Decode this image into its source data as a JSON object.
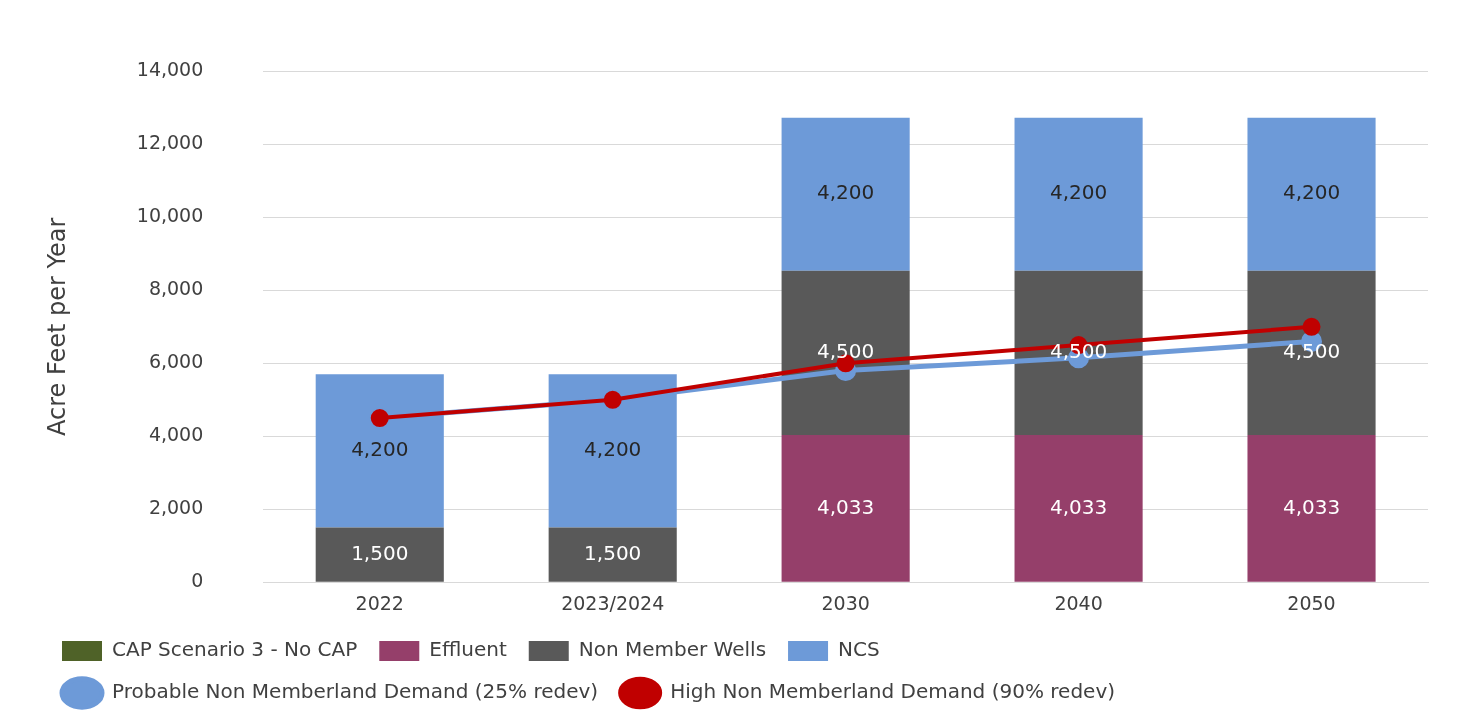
{
  "chart_data": {
    "type": "bar",
    "ylabel": "Acre Feet per Year",
    "categories": [
      "2022",
      "2023/2024",
      "2030",
      "2040",
      "2050"
    ],
    "stacked": true,
    "ylim": [
      0,
      14000
    ],
    "yticks": [
      {
        "value": 0,
        "label": "0"
      },
      {
        "value": 2000,
        "label": "2,000"
      },
      {
        "value": 4000,
        "label": "4,000"
      },
      {
        "value": 6000,
        "label": "6,000"
      },
      {
        "value": 8000,
        "label": "8,000"
      },
      {
        "value": 10000,
        "label": "10,000"
      },
      {
        "value": 12000,
        "label": "12,000"
      },
      {
        "value": 14000,
        "label": "14,000"
      }
    ],
    "grid": "y",
    "legend": "bottom",
    "series": [
      {
        "name": "CAP Scenario 3 - No CAP",
        "color": "#4f6228",
        "values": [
          null,
          null,
          null,
          null,
          null
        ]
      },
      {
        "name": "Effluent",
        "color": "#953f6a",
        "values": [
          null,
          null,
          4033,
          4033,
          4033
        ],
        "value_labels": [
          null,
          null,
          "4,033",
          "4,033",
          "4,033"
        ]
      },
      {
        "name": "Non Member Wells",
        "color": "#595959",
        "values": [
          1500,
          1500,
          4500,
          4500,
          4500
        ],
        "value_labels": [
          "1,500",
          "1,500",
          "4,500",
          "4,500",
          "4,500"
        ]
      },
      {
        "name": "NCS",
        "color": "#6d9ad8",
        "values": [
          4200,
          4200,
          4200,
          4200,
          4200
        ],
        "value_labels": [
          "4,200",
          "4,200",
          "4,200",
          "4,200",
          "4,200"
        ]
      },
      {
        "name": "Probable Non Memberland Demand (25% redev)",
        "type": "line",
        "color": "#6d9ad8",
        "marker": "circle",
        "values": [
          4500,
          5000,
          5800,
          6150,
          6600
        ]
      },
      {
        "name": "High Non Memberland Demand (90% redev)",
        "type": "line",
        "color": "#c00000",
        "marker": "circle",
        "values": [
          4500,
          5000,
          6000,
          6500,
          7000
        ]
      }
    ]
  }
}
